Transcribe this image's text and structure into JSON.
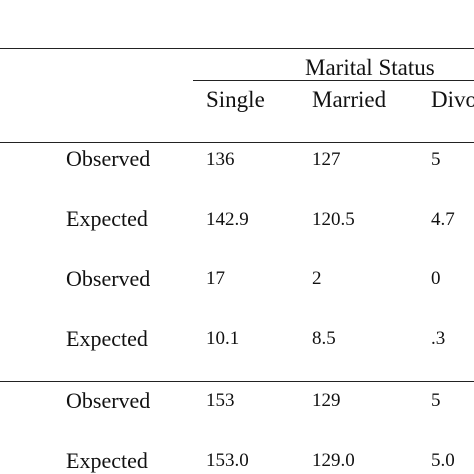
{
  "table": {
    "spanner": "Marital Status",
    "columns": [
      "Single",
      "Married",
      "Divo"
    ],
    "rows": [
      {
        "label": "Observed",
        "values": [
          "136",
          "127",
          "5"
        ]
      },
      {
        "label": "Expected",
        "values": [
          "142.9",
          "120.5",
          "4.7"
        ]
      },
      {
        "label": "Observed",
        "values": [
          "17",
          "2",
          "0"
        ]
      },
      {
        "label": "Expected",
        "values": [
          "10.1",
          "8.5",
          ".3"
        ]
      },
      {
        "label": "Observed",
        "values": [
          "153",
          "129",
          "5"
        ]
      },
      {
        "label": "Expected",
        "values": [
          "153.0",
          "129.0",
          "5.0"
        ]
      }
    ]
  }
}
